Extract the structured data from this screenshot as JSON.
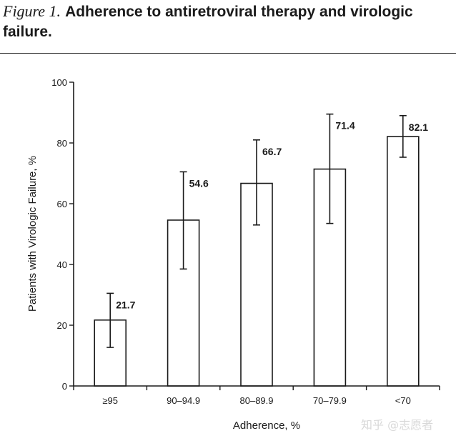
{
  "figure": {
    "label": "Figure 1.",
    "title": "Adherence to antiretroviral therapy and virologic failure."
  },
  "watermark": "知乎 @志愿者",
  "chart_data": {
    "type": "bar",
    "categories": [
      "≥95",
      "90–94.9",
      "80–89.9",
      "70–79.9",
      "<70"
    ],
    "values": [
      21.7,
      54.6,
      66.7,
      71.4,
      82.1
    ],
    "error_low": [
      12.7,
      38.5,
      53,
      53.5,
      75.3
    ],
    "error_high": [
      30.5,
      70.5,
      81,
      89.5,
      89
    ],
    "data_labels": [
      "21.7",
      "54.6",
      "66.7",
      "71.4",
      "82.1"
    ],
    "xlabel": "Adherence, %",
    "ylabel": "Patients with Virologic Failure, %",
    "ylim": [
      0,
      100
    ],
    "yticks": [
      0,
      20,
      40,
      60,
      80,
      100
    ],
    "grid": false,
    "colors": {
      "bar_fill": "#ffffff",
      "stroke": "#1a1a1a"
    }
  }
}
